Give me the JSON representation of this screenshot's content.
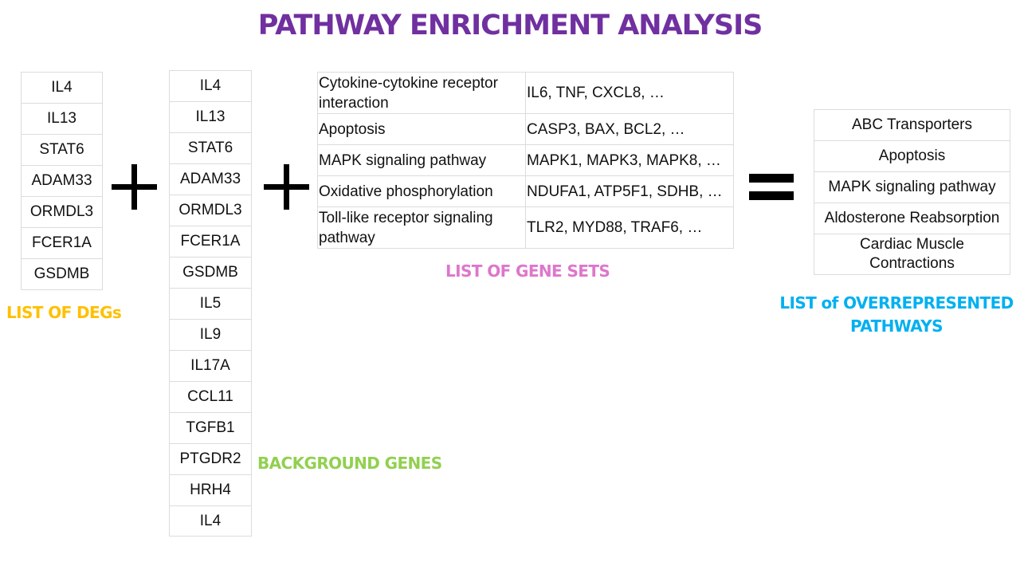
{
  "title": "PATHWAY ENRICHMENT ANALYSIS",
  "degs": {
    "caption": "LIST OF DEGs",
    "caption_color": "#ffc000",
    "items": [
      "IL4",
      "IL13",
      "STAT6",
      "ADAM33",
      "ORMDL3",
      "FCER1A",
      "GSDMB"
    ]
  },
  "background": {
    "caption": "BACKGROUND GENES",
    "caption_color": "#92d050",
    "items": [
      "IL4",
      "IL13",
      "STAT6",
      "ADAM33",
      "ORMDL3",
      "FCER1A",
      "GSDMB",
      "IL5",
      "IL9",
      "IL17A",
      "CCL11",
      "TGFB1",
      "PTGDR2",
      "HRH4",
      "IL4"
    ]
  },
  "gene_sets": {
    "caption": "LIST OF GENE SETS",
    "caption_color": "#dd77cc",
    "rows": [
      {
        "pathway": "Cytokine-cytokine receptor interaction",
        "genes": "IL6, TNF, CXCL8, …"
      },
      {
        "pathway": "Apoptosis",
        "genes": "CASP3, BAX, BCL2, …"
      },
      {
        "pathway": "MAPK signaling pathway",
        "genes": "MAPK1, MAPK3, MAPK8, …"
      },
      {
        "pathway": "Oxidative phosphorylation",
        "genes": "NDUFA1, ATP5F1, SDHB, …"
      },
      {
        "pathway": "Toll-like receptor signaling pathway",
        "genes": "TLR2, MYD88, TRAF6, …"
      }
    ]
  },
  "overrepresented": {
    "caption_line1": "LIST of OVERREPRESENTED",
    "caption_line2": "PATHWAYS",
    "caption_color": "#00b0f0",
    "items": [
      "ABC Transporters",
      "Apoptosis",
      "MAPK signaling pathway",
      "Aldosterone Reabsorption",
      "Cardiac Muscle Contractions"
    ]
  },
  "colors": {
    "title": "#7030a0",
    "operator": "#000000",
    "cell_border": "#dcdcdc"
  }
}
